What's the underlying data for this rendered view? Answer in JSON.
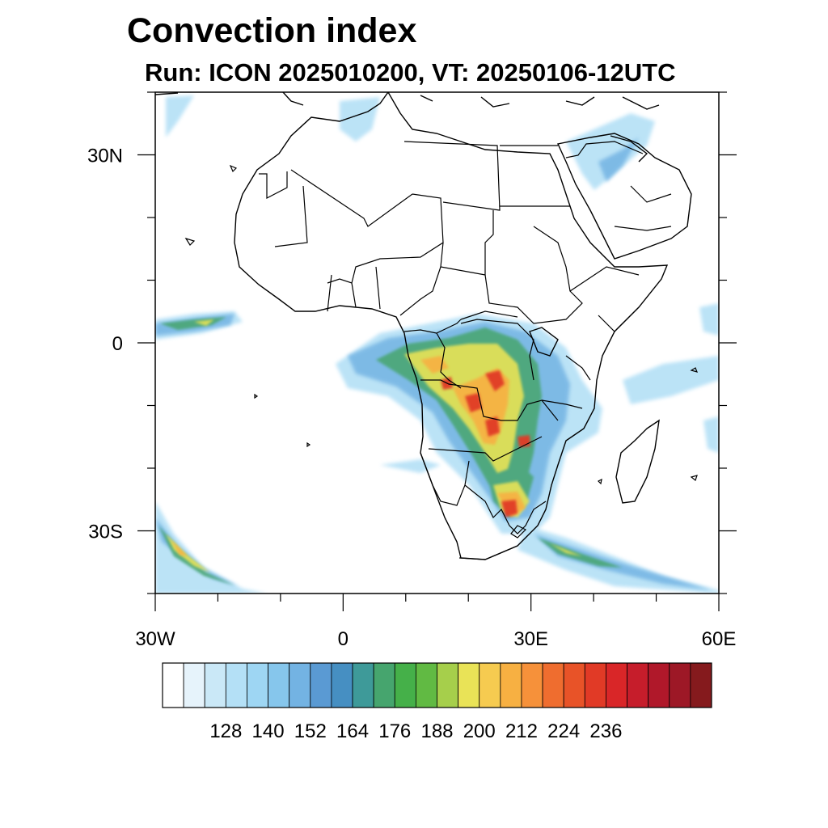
{
  "title": "Convection index",
  "subtitle": "Run: ICON 2025010200,  VT: 20250106-12UTC",
  "map": {
    "lon_range": [
      -30,
      60
    ],
    "lat_range": [
      -40,
      40
    ],
    "lon_ticks": [
      {
        "value": -30,
        "label": "30W"
      },
      {
        "value": 0,
        "label": "0"
      },
      {
        "value": 30,
        "label": "30E"
      },
      {
        "value": 60,
        "label": "60E"
      }
    ],
    "lat_ticks": [
      {
        "value": 30,
        "label": "30N"
      },
      {
        "value": 0,
        "label": "0"
      },
      {
        "value": -30,
        "label": "30S"
      }
    ]
  },
  "colorbar": {
    "colors": [
      "#ffffff",
      "#e6f3fb",
      "#cae8f7",
      "#b4e0f6",
      "#9ed6f3",
      "#86c6ec",
      "#73b3e3",
      "#5a9ad3",
      "#468fc2",
      "#3e9a99",
      "#46a56e",
      "#45b049",
      "#61ba43",
      "#a6cf4b",
      "#e9e357",
      "#f6cb50",
      "#f7b042",
      "#f6913a",
      "#ef6d2f",
      "#e85328",
      "#e13a26",
      "#d92628",
      "#c61d2b",
      "#b0182a",
      "#9d1826",
      "#851a1d"
    ],
    "labels": [
      "128",
      "140",
      "152",
      "164",
      "176",
      "188",
      "200",
      "212",
      "224",
      "236"
    ]
  }
}
